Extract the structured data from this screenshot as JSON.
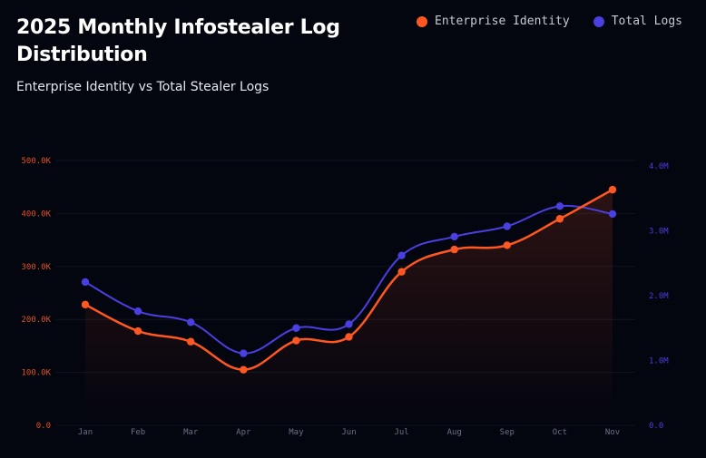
{
  "chart_data": {
    "type": "line",
    "title": "2025 Monthly Infostealer Log Distribution",
    "subtitle": "Enterprise Identity vs Total Stealer Logs",
    "categories": [
      "Jan",
      "Feb",
      "Mar",
      "Apr",
      "May",
      "Jun",
      "Jul",
      "Aug",
      "Sep",
      "Oct",
      "Nov"
    ],
    "series": [
      {
        "name": "Enterprise Identity",
        "axis": "left",
        "color": "#ff5722",
        "values": [
          228000,
          178000,
          158000,
          105000,
          160000,
          167000,
          290000,
          332000,
          340000,
          390000,
          445000
        ]
      },
      {
        "name": "Total Logs",
        "axis": "right",
        "color": "#4a3fe0",
        "values": [
          2210000,
          1760000,
          1590000,
          1110000,
          1500000,
          1560000,
          2620000,
          2910000,
          3070000,
          3380000,
          3260000
        ]
      }
    ],
    "y_left": {
      "range": [
        0,
        500000
      ],
      "ticks": [
        "0.0",
        "100.0K",
        "200.0K",
        "300.0K",
        "400.0K",
        "500.0K"
      ],
      "tick_values": [
        0,
        100000,
        200000,
        300000,
        400000,
        500000
      ]
    },
    "y_right": {
      "range": [
        0,
        4000000
      ],
      "ticks": [
        "0.0",
        "1.0M",
        "2.0M",
        "3.0M",
        "4.0M"
      ],
      "tick_values": [
        0,
        1000000,
        2000000,
        3000000,
        4000000
      ]
    },
    "legend": "top-right",
    "grid": true
  }
}
